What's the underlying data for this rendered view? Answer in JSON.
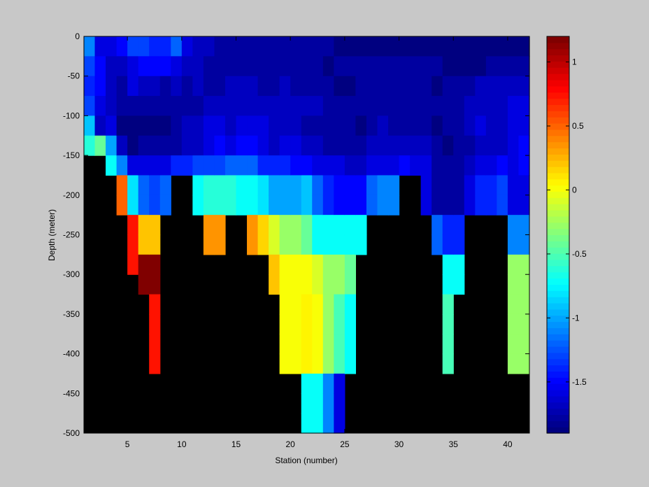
{
  "chart_data": {
    "type": "heatmap",
    "title": "",
    "xlabel": "Station (number)",
    "ylabel": "Depth (meter)",
    "xlim": [
      1,
      42
    ],
    "ylim": [
      -500,
      0
    ],
    "xticks": [
      5,
      10,
      15,
      20,
      25,
      30,
      35,
      40
    ],
    "yticks": [
      0,
      -50,
      -100,
      -150,
      -200,
      -250,
      -300,
      -350,
      -400,
      -450,
      -500
    ],
    "colorbar": {
      "colormap": "jet",
      "clim": [
        -1.9,
        1.2
      ],
      "ticks": [
        1,
        0.5,
        0,
        -0.5,
        -1,
        -1.5
      ],
      "tick_labels": [
        "1",
        "0.5",
        "0",
        "-0.5",
        "-1",
        "-1.5"
      ],
      "levels": 64
    },
    "missing_color": "#000000",
    "stations": [
      2,
      3,
      4,
      5,
      6,
      7,
      8,
      9,
      10,
      11,
      12,
      13,
      14,
      15,
      16,
      17,
      18,
      19,
      20,
      21,
      22,
      23,
      24,
      25,
      26,
      27,
      28,
      29,
      30,
      31,
      32,
      33,
      34,
      35,
      36,
      37,
      38,
      39,
      40,
      41,
      42
    ],
    "depths": [
      0,
      -25,
      -50,
      -75,
      -100,
      -125,
      -150,
      -175,
      -200,
      -225,
      -250,
      -275,
      -300,
      -325,
      -350,
      -375,
      -400,
      -425,
      -450,
      -475
    ],
    "profiles": [
      {
        "x": 2,
        "v": [
          -1.1,
          -1.3,
          -1.4,
          -1.3,
          -0.9,
          -0.6
        ]
      },
      {
        "x": 3,
        "v": [
          -1.6,
          -1.5,
          -1.5,
          -1.6,
          -1.7,
          -0.4
        ]
      },
      {
        "x": 4,
        "v": [
          -1.6,
          -1.7,
          -1.7,
          -1.7,
          -1.6,
          -1.0,
          -0.7
        ]
      },
      {
        "x": 5,
        "v": [
          -1.5,
          -1.7,
          -1.8,
          -1.8,
          -1.9,
          -1.7,
          -1.1,
          0.5,
          0.5
        ]
      },
      {
        "x": 6,
        "v": [
          -1.3,
          -1.6,
          -1.6,
          -1.8,
          -1.9,
          -1.9,
          -1.6,
          -0.8,
          -0.8,
          0.75,
          0.75,
          0.75
        ]
      },
      {
        "x": 7,
        "v": [
          -1.3,
          -1.5,
          -1.7,
          -1.8,
          -1.9,
          -1.8,
          -1.6,
          -1.2,
          -1.2,
          0.2,
          0.2,
          1.2,
          1.2
        ]
      },
      {
        "x": 8,
        "v": [
          -1.4,
          -1.5,
          -1.7,
          -1.8,
          -1.9,
          -1.8,
          -1.6,
          -1.3,
          -1.3,
          0.2,
          0.2,
          1.2,
          1.2,
          0.75,
          0.75,
          0.75,
          0.75
        ]
      },
      {
        "x": 9,
        "v": [
          -1.4,
          -1.5,
          -1.8,
          -1.8,
          -1.9,
          -1.8,
          -1.6,
          -1.2,
          -1.2
        ]
      },
      {
        "x": 10,
        "v": [
          -1.2,
          -1.6,
          -1.7,
          -1.8,
          -1.8,
          -1.8,
          -1.4
        ]
      },
      {
        "x": 11,
        "v": [
          -1.6,
          -1.7,
          -1.8,
          -1.8,
          -1.7,
          -1.7,
          -1.4
        ]
      },
      {
        "x": 12,
        "v": [
          -1.7,
          -1.7,
          -1.7,
          -1.8,
          -1.7,
          -1.7,
          -1.3,
          -0.7,
          -0.7
        ]
      },
      {
        "x": 13,
        "v": [
          -1.7,
          -1.8,
          -1.8,
          -1.7,
          -1.6,
          -1.6,
          -1.3,
          -0.6,
          -0.6,
          0.35,
          0.35
        ]
      },
      {
        "x": 14,
        "v": [
          -1.8,
          -1.8,
          -1.8,
          -1.7,
          -1.6,
          -1.5,
          -1.3,
          -0.6,
          -0.6,
          0.35,
          0.35
        ]
      },
      {
        "x": 15,
        "v": [
          -1.8,
          -1.8,
          -1.7,
          -1.7,
          -1.7,
          -1.6,
          -1.2,
          -0.6,
          -0.6
        ]
      },
      {
        "x": 16,
        "v": [
          -1.8,
          -1.8,
          -1.7,
          -1.7,
          -1.6,
          -1.5,
          -1.2,
          -0.7,
          -0.7
        ]
      },
      {
        "x": 17,
        "v": [
          -1.8,
          -1.8,
          -1.7,
          -1.7,
          -1.6,
          -1.5,
          -1.2,
          -0.7,
          -0.7,
          0.35,
          0.35
        ]
      },
      {
        "x": 18,
        "v": [
          -1.8,
          -1.8,
          -1.8,
          -1.7,
          -1.6,
          -1.6,
          -1.4,
          -0.8,
          -0.8,
          0.15,
          0.15
        ]
      },
      {
        "x": 19,
        "v": [
          -1.8,
          -1.8,
          -1.8,
          -1.7,
          -1.7,
          -1.7,
          -1.4,
          -1.0,
          -1.0,
          -0.1,
          -0.1,
          0.2,
          0.2
        ]
      },
      {
        "x": 20,
        "v": [
          -1.8,
          -1.8,
          -1.7,
          -1.7,
          -1.7,
          -1.6,
          -1.4,
          -1.0,
          -1.0,
          -0.3,
          -0.3,
          0.0,
          0.0,
          0.0,
          0.0,
          0.0,
          0.0
        ]
      },
      {
        "x": 21,
        "v": [
          -1.8,
          -1.8,
          -1.8,
          -1.7,
          -1.7,
          -1.6,
          -1.5,
          -1.0,
          -1.0,
          -0.3,
          -0.3,
          0.0,
          0.0,
          0.0,
          0.0,
          0.0,
          0.0
        ]
      },
      {
        "x": 22,
        "v": [
          -1.8,
          -1.8,
          -1.8,
          -1.7,
          -1.8,
          -1.7,
          -1.5,
          -0.9,
          -0.9,
          -0.4,
          -0.4,
          0.0,
          0.0,
          0.05,
          0.05,
          0.05,
          0.05,
          -0.7,
          -0.7,
          -0.7
        ]
      },
      {
        "x": 23,
        "v": [
          -1.8,
          -1.8,
          -1.8,
          -1.7,
          -1.8,
          -1.7,
          -1.6,
          -1.2,
          -1.2,
          -0.7,
          -0.7,
          -0.1,
          -0.1,
          0.0,
          0.0,
          0.0,
          0.0,
          -0.7,
          -0.7,
          -0.7
        ]
      },
      {
        "x": 24,
        "v": [
          -1.8,
          -1.9,
          -1.8,
          -1.8,
          -1.8,
          -1.8,
          -1.6,
          -1.4,
          -1.4,
          -0.7,
          -0.7,
          -0.3,
          -0.3,
          -0.3,
          -0.3,
          -0.3,
          -0.3,
          -1.1,
          -1.1,
          -1.1
        ]
      },
      {
        "x": 25,
        "v": [
          -1.9,
          -1.8,
          -1.9,
          -1.8,
          -1.8,
          -1.8,
          -1.6,
          -1.5,
          -1.5,
          -0.7,
          -0.7,
          -0.3,
          -0.3,
          -0.5,
          -0.5,
          -0.5,
          -0.5,
          -1.6,
          -1.6,
          -1.6
        ]
      },
      {
        "x": 26,
        "v": [
          -1.9,
          -1.8,
          -1.9,
          -1.8,
          -1.8,
          -1.8,
          -1.7,
          -1.5,
          -1.5,
          -0.7,
          -0.7,
          -0.4,
          -0.4,
          -0.7,
          -0.7,
          -0.7,
          -0.7
        ]
      },
      {
        "x": 27,
        "v": [
          -1.9,
          -1.8,
          -1.8,
          -1.8,
          -1.9,
          -1.8,
          -1.7,
          -1.5,
          -1.5,
          -0.7,
          -0.7
        ]
      },
      {
        "x": 28,
        "v": [
          -1.9,
          -1.8,
          -1.8,
          -1.8,
          -1.8,
          -1.7,
          -1.6,
          -1.2,
          -1.2
        ]
      },
      {
        "x": 29,
        "v": [
          -1.9,
          -1.8,
          -1.8,
          -1.8,
          -1.7,
          -1.7,
          -1.6,
          -1.1,
          -1.1
        ]
      },
      {
        "x": 30,
        "v": [
          -1.9,
          -1.8,
          -1.8,
          -1.8,
          -1.8,
          -1.7,
          -1.6,
          -1.1,
          -1.1
        ]
      },
      {
        "x": 31,
        "v": [
          -1.9,
          -1.8,
          -1.8,
          -1.8,
          -1.8,
          -1.7,
          -1.5
        ]
      },
      {
        "x": 32,
        "v": [
          -1.9,
          -1.8,
          -1.8,
          -1.8,
          -1.8,
          -1.7,
          -1.6
        ]
      },
      {
        "x": 33,
        "v": [
          -1.9,
          -1.8,
          -1.8,
          -1.8,
          -1.8,
          -1.7,
          -1.6,
          -1.6,
          -1.6
        ]
      },
      {
        "x": 34,
        "v": [
          -1.9,
          -1.8,
          -1.9,
          -1.8,
          -1.9,
          -1.8,
          -1.8,
          -1.8,
          -1.8,
          -1.2,
          -1.2
        ]
      },
      {
        "x": 35,
        "v": [
          -1.9,
          -1.9,
          -1.8,
          -1.8,
          -1.8,
          -1.9,
          -1.8,
          -1.8,
          -1.8,
          -1.4,
          -1.4,
          -0.7,
          -0.7,
          -0.5,
          -0.5,
          -0.5,
          -0.5
        ]
      },
      {
        "x": 36,
        "v": [
          -1.9,
          -1.9,
          -1.8,
          -1.8,
          -1.8,
          -1.8,
          -1.8,
          -1.8,
          -1.8,
          -1.4,
          -1.4,
          -0.7,
          -0.7
        ]
      },
      {
        "x": 37,
        "v": [
          -1.9,
          -1.9,
          -1.8,
          -1.7,
          -1.7,
          -1.8,
          -1.7,
          -1.6,
          -1.6
        ]
      },
      {
        "x": 38,
        "v": [
          -1.9,
          -1.9,
          -1.7,
          -1.7,
          -1.6,
          -1.7,
          -1.6,
          -1.4,
          -1.4
        ]
      },
      {
        "x": 39,
        "v": [
          -1.9,
          -1.8,
          -1.7,
          -1.7,
          -1.7,
          -1.7,
          -1.6,
          -1.4,
          -1.4
        ]
      },
      {
        "x": 40,
        "v": [
          -1.9,
          -1.8,
          -1.7,
          -1.7,
          -1.7,
          -1.7,
          -1.5,
          -1.3,
          -1.3
        ]
      },
      {
        "x": 41,
        "v": [
          -1.9,
          -1.8,
          -1.7,
          -1.6,
          -1.6,
          -1.6,
          -1.6,
          -1.6,
          -1.6,
          -1.1,
          -1.1,
          -0.3,
          -0.3,
          -0.3,
          -0.3,
          -0.3,
          -0.3
        ]
      },
      {
        "x": 42,
        "v": [
          -1.9,
          -1.8,
          -1.7,
          -1.6,
          -1.6,
          -1.5,
          -1.5,
          -1.6,
          -1.6,
          -1.1,
          -1.1,
          -0.3,
          -0.3,
          -0.3,
          -0.3,
          -0.3,
          -0.3
        ]
      }
    ]
  }
}
